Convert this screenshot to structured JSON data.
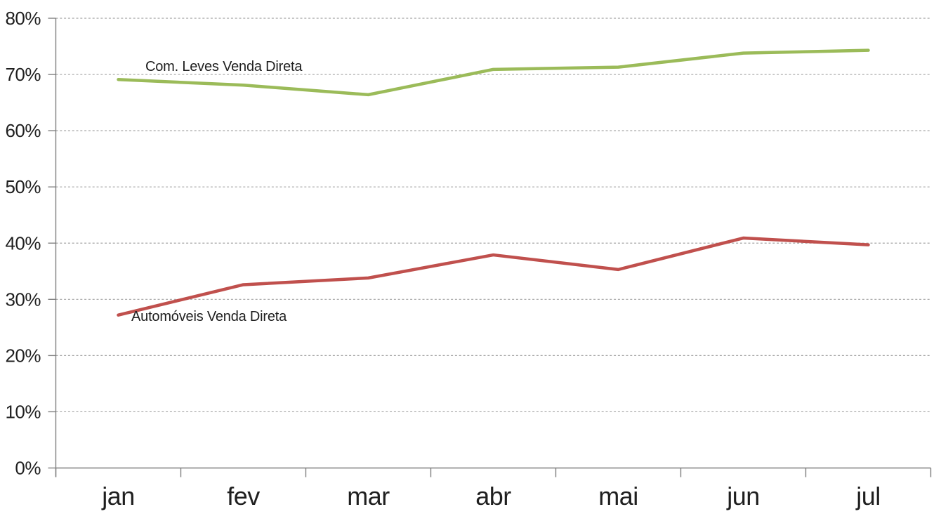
{
  "page": {
    "background_color": "#ffffff",
    "text_color": "#1f1f1f"
  },
  "chart_data": {
    "type": "line",
    "title": "",
    "xlabel": "",
    "ylabel": "",
    "categories": [
      "jan",
      "fev",
      "mar",
      "abr",
      "mai",
      "jun",
      "jul"
    ],
    "series": [
      {
        "name": "Com. Leves Venda Direta",
        "color": "#9bbb59",
        "values": [
          69.1,
          68.1,
          66.4,
          70.9,
          71.3,
          73.8,
          74.3
        ]
      },
      {
        "name": "Automóveis Venda Direta",
        "color": "#c0504d",
        "values": [
          27.2,
          32.6,
          33.8,
          37.9,
          35.3,
          40.9,
          39.7
        ]
      }
    ],
    "ylim": [
      0,
      80
    ],
    "y_tick_step": 10,
    "y_tick_labels": [
      "0%",
      "10%",
      "20%",
      "30%",
      "40%",
      "50%",
      "60%",
      "70%",
      "80%"
    ],
    "grid": "horizontal-dashed",
    "legend": "inline-series-labels",
    "axis_color": "#7f7f7f",
    "gridline_color": "#a3a3a3"
  }
}
